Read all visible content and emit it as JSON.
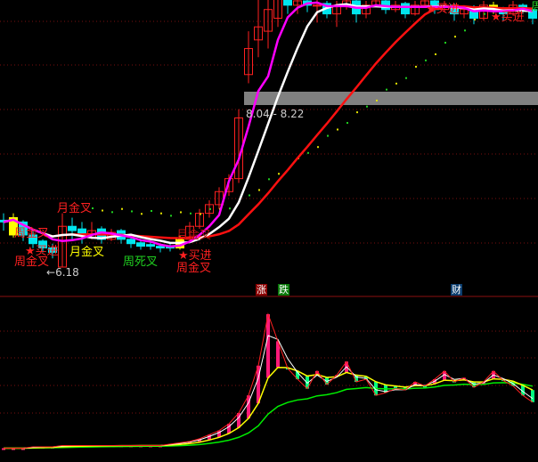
{
  "chart_data": {
    "type": "candlestick",
    "colors": {
      "up": "#ff2020",
      "down": "#00e5ee",
      "signal": "#ffff00",
      "ma_short": "#ffffff",
      "ma_mid": "#ff00ff",
      "ma_long": "#ff1010",
      "bar_up": "#ff1a7a",
      "bar_down": "#00ff7f",
      "line_fast": "#ffff00",
      "line_slow": "#00ee00"
    },
    "price_range": [
      5.95,
      9.25
    ],
    "candles": [
      [
        6.72,
        6.8,
        6.6,
        6.7
      ],
      [
        6.55,
        6.8,
        6.52,
        6.75
      ],
      [
        6.7,
        6.72,
        6.48,
        6.55
      ],
      [
        6.55,
        6.6,
        6.4,
        6.45
      ],
      [
        6.48,
        6.5,
        6.35,
        6.4
      ],
      [
        6.4,
        6.45,
        6.28,
        6.35
      ],
      [
        6.18,
        6.8,
        6.18,
        6.65
      ],
      [
        6.65,
        6.75,
        6.5,
        6.6
      ],
      [
        6.62,
        6.7,
        6.45,
        6.55
      ],
      [
        6.52,
        6.7,
        6.5,
        6.6
      ],
      [
        6.62,
        6.65,
        6.45,
        6.5
      ],
      [
        6.5,
        6.62,
        6.48,
        6.58
      ],
      [
        6.6,
        6.62,
        6.45,
        6.5
      ],
      [
        6.5,
        6.55,
        6.4,
        6.45
      ],
      [
        6.46,
        6.5,
        6.38,
        6.42
      ],
      [
        6.44,
        6.48,
        6.38,
        6.42
      ],
      [
        6.42,
        6.45,
        6.35,
        6.4
      ],
      [
        6.41,
        6.45,
        6.36,
        6.4
      ],
      [
        6.4,
        6.55,
        6.38,
        6.5
      ],
      [
        6.5,
        6.7,
        6.48,
        6.65
      ],
      [
        6.65,
        6.85,
        6.62,
        6.8
      ],
      [
        6.8,
        6.95,
        6.75,
        6.9
      ],
      [
        6.9,
        7.1,
        6.85,
        7.05
      ],
      [
        7.05,
        7.25,
        7.0,
        7.2
      ],
      [
        7.2,
        8.0,
        7.15,
        7.9
      ],
      [
        8.4,
        8.9,
        8.3,
        8.7
      ],
      [
        8.8,
        9.3,
        8.6,
        8.95
      ],
      [
        8.9,
        9.4,
        8.7,
        9.15
      ],
      [
        9.05,
        9.4,
        8.95,
        9.3
      ],
      [
        9.3,
        9.4,
        9.1,
        9.2
      ],
      [
        9.2,
        9.35,
        9.1,
        9.25
      ],
      [
        9.25,
        9.3,
        9.12,
        9.2
      ],
      [
        9.2,
        9.3,
        9.0,
        9.2
      ],
      [
        9.22,
        9.25,
        9.05,
        9.1
      ],
      [
        9.1,
        9.25,
        8.95,
        9.2
      ],
      [
        9.2,
        9.3,
        9.15,
        9.25
      ],
      [
        9.25,
        9.28,
        9.0,
        9.1
      ],
      [
        9.1,
        9.25,
        9.05,
        9.2
      ],
      [
        9.2,
        9.3,
        9.18,
        9.25
      ],
      [
        9.25,
        9.28,
        9.1,
        9.15
      ],
      [
        9.15,
        9.25,
        9.12,
        9.2
      ],
      [
        9.22,
        9.24,
        9.05,
        9.1
      ],
      [
        9.1,
        9.25,
        9.08,
        9.2
      ],
      [
        9.2,
        9.3,
        9.18,
        9.25
      ],
      [
        9.25,
        9.26,
        9.1,
        9.15
      ],
      [
        9.15,
        9.25,
        9.12,
        9.2
      ],
      [
        9.2,
        9.22,
        9.02,
        9.1
      ],
      [
        9.1,
        9.2,
        9.05,
        9.15
      ],
      [
        9.18,
        9.2,
        8.98,
        9.05
      ],
      [
        9.05,
        9.25,
        9.02,
        9.2
      ],
      [
        9.2,
        9.24,
        9.1,
        9.15
      ],
      [
        9.15,
        9.18,
        9.02,
        9.1
      ],
      [
        9.1,
        9.25,
        9.08,
        9.2
      ],
      [
        9.2,
        9.22,
        9.1,
        9.15
      ],
      [
        9.15,
        9.18,
        8.98,
        9.05
      ]
    ],
    "signal_days": [
      1,
      18,
      50
    ],
    "indicator": [
      1,
      1,
      1,
      2,
      2,
      2,
      3,
      3,
      3,
      3,
      3,
      3,
      3,
      3,
      3,
      3,
      3,
      4,
      5,
      6,
      8,
      11,
      14,
      19,
      27,
      40,
      62,
      100,
      80,
      60,
      52,
      45,
      58,
      48,
      55,
      65,
      50,
      52,
      40,
      42,
      45,
      44,
      50,
      47,
      52,
      58,
      50,
      53,
      46,
      50,
      58,
      51,
      47,
      40,
      35
    ],
    "price_band_label": "8.04 - 8.22",
    "low_label": "6.18"
  },
  "signals": {
    "month_cross_1": "月金叉",
    "week_cross_1": "周金叉",
    "buy_1": "买进",
    "week_cross_2": "周金叉",
    "month_cross_2": "月金叉",
    "week_dead_cross": "周死叉",
    "month_cross_3": "月金叉",
    "buy_2": "买进",
    "week_cross_3": "周金叉",
    "buy_3": "买进",
    "buy_4": "买进",
    "week_cut": "周"
  },
  "tags": {
    "rise": "涨",
    "fall": "跌",
    "finance": "财"
  }
}
